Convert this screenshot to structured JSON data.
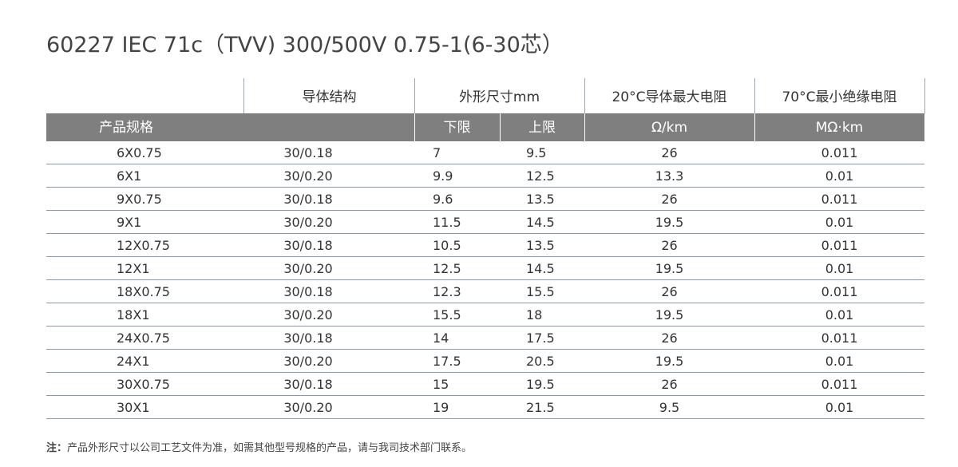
{
  "title": "60227 IEC 71c（TVV) 300/500V 0.75-1(6-30芯）",
  "header": {
    "conductor": "导体结构",
    "dimension": "外形尺寸mm",
    "resistance": "20°C导体最大电阻",
    "insulation": "70°C最小绝缘电阻"
  },
  "subheader": {
    "spec": "产品规格",
    "lower": "下限",
    "upper": "上限",
    "resistance_unit": "Ω/km",
    "insulation_unit": "MΩ·km"
  },
  "rows": [
    {
      "spec": "6X0.75",
      "conductor": "30/0.18",
      "lower": "7",
      "upper": "9.5",
      "resistance": "26",
      "insulation": "0.011"
    },
    {
      "spec": "6X1",
      "conductor": "30/0.20",
      "lower": "9.9",
      "upper": "12.5",
      "resistance": "13.3",
      "insulation": "0.01"
    },
    {
      "spec": "9X0.75",
      "conductor": "30/0.18",
      "lower": "9.6",
      "upper": "13.5",
      "resistance": "26",
      "insulation": "0.011"
    },
    {
      "spec": "9X1",
      "conductor": "30/0.20",
      "lower": "11.5",
      "upper": "14.5",
      "resistance": "19.5",
      "insulation": "0.01"
    },
    {
      "spec": "12X0.75",
      "conductor": "30/0.18",
      "lower": "10.5",
      "upper": "13.5",
      "resistance": "26",
      "insulation": "0.011"
    },
    {
      "spec": "12X1",
      "conductor": "30/0.20",
      "lower": "12.5",
      "upper": "14.5",
      "resistance": "19.5",
      "insulation": "0.01"
    },
    {
      "spec": "18X0.75",
      "conductor": "30/0.18",
      "lower": "12.3",
      "upper": "15.5",
      "resistance": "26",
      "insulation": "0.011"
    },
    {
      "spec": "18X1",
      "conductor": "30/0.20",
      "lower": "15.5",
      "upper": "18",
      "resistance": "19.5",
      "insulation": "0.01"
    },
    {
      "spec": "24X0.75",
      "conductor": "30/0.18",
      "lower": "14",
      "upper": "17.5",
      "resistance": "26",
      "insulation": "0.011"
    },
    {
      "spec": "24X1",
      "conductor": "30/0.20",
      "lower": "17.5",
      "upper": "20.5",
      "resistance": "19.5",
      "insulation": "0.01"
    },
    {
      "spec": "30X0.75",
      "conductor": "30/0.18",
      "lower": "15",
      "upper": "19.5",
      "resistance": "26",
      "insulation": "0.011"
    },
    {
      "spec": "30X1",
      "conductor": "30/0.20",
      "lower": "19",
      "upper": "21.5",
      "resistance": "9.5",
      "insulation": "0.01"
    }
  ],
  "note": {
    "label": "注：",
    "text": "产品外形尺寸以公司工艺文件为准，如需其他型号规格的产品，请与我司技术部门联系。"
  }
}
